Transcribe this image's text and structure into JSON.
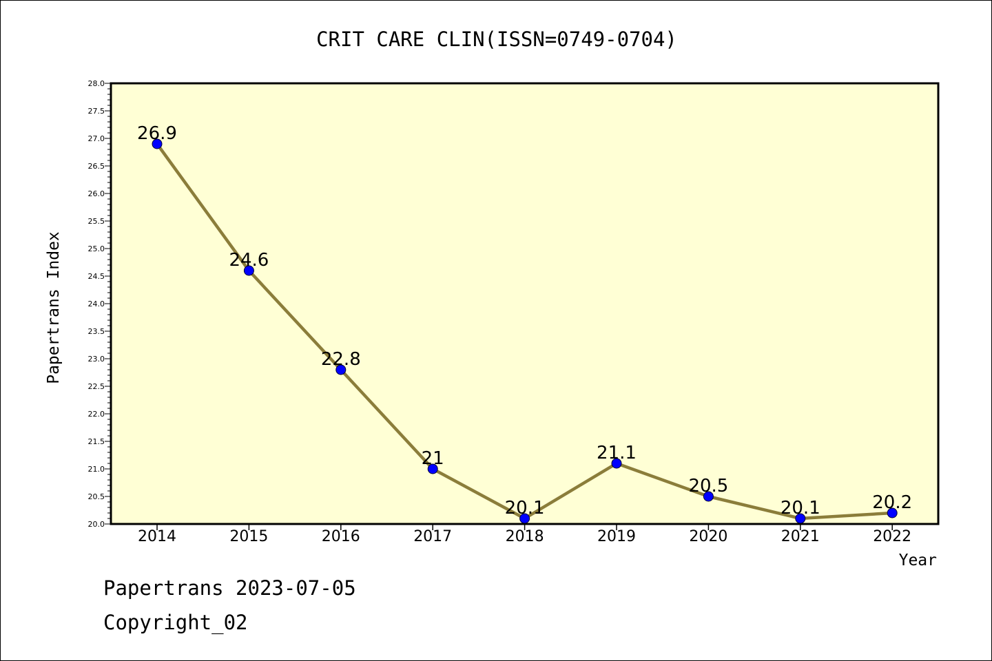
{
  "colors": {
    "plot_background": "#ffffd5",
    "line": "#8b7d3a",
    "marker": "#0000ff",
    "axis": "#000000"
  },
  "footer": {
    "date_line": "Papertrans 2023-07-05",
    "copyright": "Copyright_02"
  },
  "chart_data": {
    "type": "line",
    "title": "CRIT CARE CLIN(ISSN=0749-0704)",
    "xlabel": "Year",
    "ylabel": "Papertrans Index",
    "categories": [
      "2014",
      "2015",
      "2016",
      "2017",
      "2018",
      "2019",
      "2020",
      "2021",
      "2022"
    ],
    "series": [
      {
        "name": "Papertrans Index",
        "values": [
          26.9,
          24.6,
          22.8,
          21,
          20.1,
          21.1,
          20.5,
          20.1,
          20.2
        ],
        "labels": [
          "26.9",
          "24.6",
          "22.8",
          "21",
          "20.1",
          "21.1",
          "20.5",
          "20.1",
          "20.2"
        ]
      }
    ],
    "ylim": [
      20.0,
      28.0
    ],
    "yticks": [
      "20.0",
      "20.5",
      "21.0",
      "21.5",
      "22.0",
      "22.5",
      "23.0",
      "23.5",
      "24.0",
      "24.5",
      "25.0",
      "25.5",
      "26.0",
      "26.5",
      "27.0",
      "27.5",
      "28.0"
    ],
    "grid": false,
    "legend": "none"
  }
}
